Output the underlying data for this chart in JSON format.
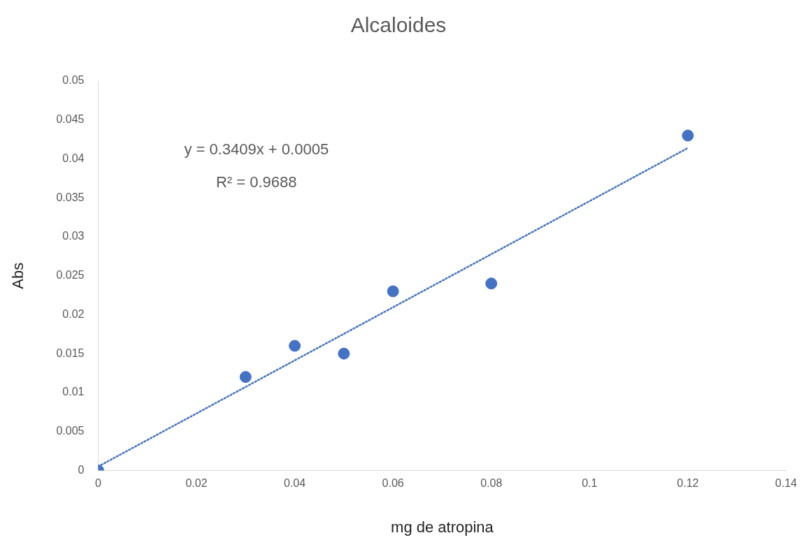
{
  "chart_data": {
    "type": "scatter",
    "title": "Alcaloides",
    "xlabel": "mg de atropina",
    "ylabel": "Abs",
    "series": [
      {
        "type": "scatter",
        "color": "#4472c4",
        "marker": "circle",
        "x": [
          0,
          0.03,
          0.04,
          0.05,
          0.06,
          0.08,
          0.12
        ],
        "values": [
          0,
          0.012,
          0.016,
          0.015,
          0.023,
          0.024,
          0.043
        ]
      },
      {
        "type": "line",
        "color": "#4472c4",
        "marker": "none",
        "line_style": "dotted",
        "x": [
          0,
          0.12
        ],
        "values": [
          0.0005,
          0.0414
        ]
      }
    ],
    "xlim": [
      0,
      0.14
    ],
    "xticks": [
      0,
      0.02,
      0.04,
      0.06,
      0.08,
      0.1,
      0.12,
      0.14
    ],
    "ylim": [
      0,
      0.05
    ],
    "yticks": [
      0,
      0.005,
      0.01,
      0.015,
      0.02,
      0.025,
      0.03,
      0.035,
      0.04,
      0.045,
      0.05
    ],
    "grid": false,
    "legend": false,
    "annotations": [
      "y = 0.3409x + 0.0005",
      "R² = 0.9688"
    ]
  }
}
